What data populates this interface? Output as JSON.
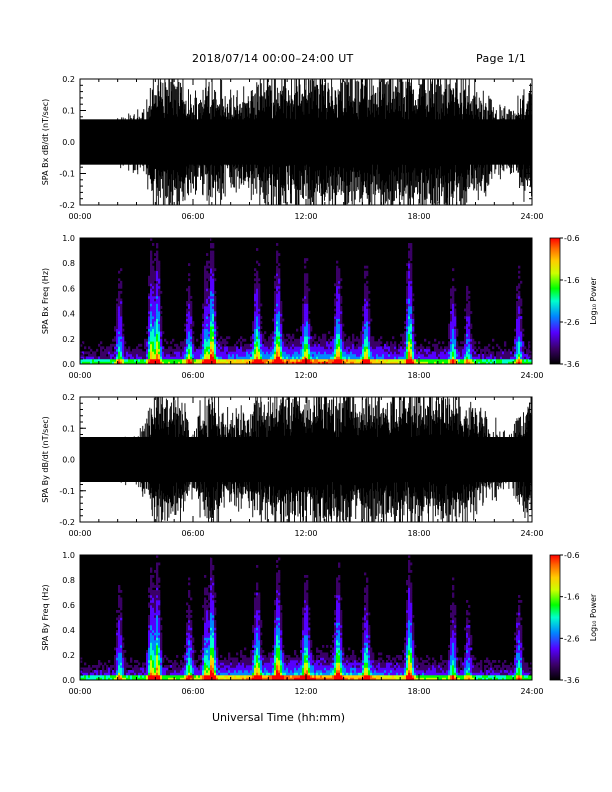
{
  "header": {
    "title": "2018/07/14  00:00–24:00 UT",
    "page": "Page 1/1"
  },
  "footer": {
    "xlabel": "Universal Time (hh:mm)"
  },
  "colors": {
    "trace": "#000000",
    "background": "#ffffff",
    "colormap": [
      "#000000",
      "#3a0066",
      "#5500ff",
      "#0088ff",
      "#00ffcc",
      "#00ff00",
      "#ccff00",
      "#ffcc00",
      "#ff6600",
      "#ff0000"
    ]
  },
  "chart_data": [
    {
      "type": "line",
      "ylabel": "SPA Bx dB/dt (nT/sec)",
      "xlim": [
        "00:00",
        "24:00"
      ],
      "ylim": [
        -0.2,
        0.2
      ],
      "x_ticks": [
        "00:00",
        "06:00",
        "12:00",
        "18:00",
        "24:00"
      ],
      "y_ticks": [
        "-0.2",
        "-0.1",
        "0.0",
        "0.1",
        "0.2"
      ],
      "series": [
        {
          "x": [
            0,
            1,
            2,
            3,
            3.5,
            4,
            5,
            6,
            7,
            8,
            9,
            10,
            11,
            12,
            13,
            14,
            15,
            16,
            17,
            18,
            19,
            20,
            21,
            22,
            23,
            24
          ],
          "amplitude": [
            0.04,
            0.05,
            0.06,
            0.08,
            0.1,
            0.2,
            0.2,
            0.12,
            0.2,
            0.12,
            0.15,
            0.2,
            0.2,
            0.2,
            0.2,
            0.2,
            0.2,
            0.2,
            0.2,
            0.2,
            0.2,
            0.2,
            0.15,
            0.1,
            0.08,
            0.2
          ]
        }
      ]
    },
    {
      "type": "heatmap",
      "ylabel": "SPA Bx Freq (Hz)",
      "xlim": [
        "00:00",
        "24:00"
      ],
      "ylim": [
        0.0,
        1.0
      ],
      "x_ticks": [
        "00:00",
        "06:00",
        "12:00",
        "18:00",
        "24:00"
      ],
      "y_ticks": [
        "0.0",
        "0.2",
        "0.4",
        "0.6",
        "0.8",
        "1.0"
      ],
      "colorbar": {
        "label": "Log₁₀ Power",
        "ticks": [
          "-0.6",
          "-1.6",
          "-2.6",
          "-3.6"
        ],
        "range": [
          -3.6,
          -0.6
        ]
      },
      "bursts": [
        {
          "time": 2.1,
          "strength": 0.5
        },
        {
          "time": 3.8,
          "strength": 0.8
        },
        {
          "time": 4.1,
          "strength": 0.9
        },
        {
          "time": 5.8,
          "strength": 0.5
        },
        {
          "time": 6.7,
          "strength": 0.6
        },
        {
          "time": 7.0,
          "strength": 1.0
        },
        {
          "time": 9.4,
          "strength": 0.7
        },
        {
          "time": 10.5,
          "strength": 0.8
        },
        {
          "time": 12.0,
          "strength": 0.6
        },
        {
          "time": 13.7,
          "strength": 0.7
        },
        {
          "time": 15.2,
          "strength": 0.6
        },
        {
          "time": 17.5,
          "strength": 0.9
        },
        {
          "time": 19.8,
          "strength": 0.5
        },
        {
          "time": 20.6,
          "strength": 0.4
        },
        {
          "time": 23.3,
          "strength": 0.5
        }
      ]
    },
    {
      "type": "line",
      "ylabel": "SPA By dB/dt (nT/sec)",
      "xlim": [
        "00:00",
        "24:00"
      ],
      "ylim": [
        -0.2,
        0.2
      ],
      "x_ticks": [
        "00:00",
        "06:00",
        "12:00",
        "18:00",
        "24:00"
      ],
      "y_ticks": [
        "-0.2",
        "-0.1",
        "0.0",
        "0.1",
        "0.2"
      ],
      "series": [
        {
          "x": [
            0,
            1,
            2,
            3,
            3.5,
            4,
            5,
            6,
            7,
            8,
            9,
            10,
            11,
            12,
            13,
            14,
            15,
            16,
            17,
            18,
            19,
            20,
            21,
            22,
            23,
            24
          ],
          "amplitude": [
            0.04,
            0.04,
            0.06,
            0.07,
            0.1,
            0.2,
            0.2,
            0.1,
            0.2,
            0.12,
            0.15,
            0.2,
            0.2,
            0.2,
            0.2,
            0.2,
            0.2,
            0.2,
            0.2,
            0.2,
            0.2,
            0.2,
            0.15,
            0.1,
            0.08,
            0.2
          ]
        }
      ]
    },
    {
      "type": "heatmap",
      "ylabel": "SPA By Freq (Hz)",
      "xlim": [
        "00:00",
        "24:00"
      ],
      "ylim": [
        0.0,
        1.0
      ],
      "x_ticks": [
        "00:00",
        "06:00",
        "12:00",
        "18:00",
        "24:00"
      ],
      "y_ticks": [
        "0.0",
        "0.2",
        "0.4",
        "0.6",
        "0.8",
        "1.0"
      ],
      "colorbar": {
        "label": "Log₁₀ Power",
        "ticks": [
          "-0.6",
          "-1.6",
          "-2.6",
          "-3.6"
        ],
        "range": [
          -3.6,
          -0.6
        ]
      },
      "bursts": [
        {
          "time": 2.1,
          "strength": 0.5
        },
        {
          "time": 3.8,
          "strength": 0.8
        },
        {
          "time": 4.1,
          "strength": 0.9
        },
        {
          "time": 5.8,
          "strength": 0.5
        },
        {
          "time": 6.7,
          "strength": 0.6
        },
        {
          "time": 7.0,
          "strength": 1.0
        },
        {
          "time": 9.4,
          "strength": 0.7
        },
        {
          "time": 10.5,
          "strength": 0.9
        },
        {
          "time": 12.0,
          "strength": 0.7
        },
        {
          "time": 13.7,
          "strength": 0.8
        },
        {
          "time": 15.2,
          "strength": 0.6
        },
        {
          "time": 17.5,
          "strength": 0.9
        },
        {
          "time": 19.8,
          "strength": 0.5
        },
        {
          "time": 20.6,
          "strength": 0.4
        },
        {
          "time": 23.3,
          "strength": 0.5
        }
      ]
    }
  ]
}
